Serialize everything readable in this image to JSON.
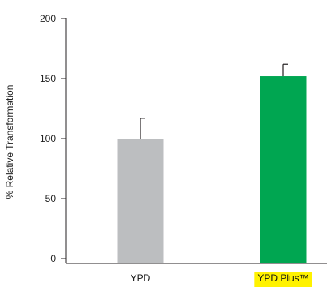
{
  "chart_data": {
    "type": "bar",
    "categories": [
      "YPD",
      "YPD Plus™"
    ],
    "values": [
      100,
      152
    ],
    "errors": [
      17,
      10
    ],
    "ylabel": "% Relative Transformation",
    "xlabel": "",
    "ylim": [
      0,
      200
    ],
    "yticks": [
      0,
      50,
      100,
      150,
      200
    ],
    "grid": false,
    "legend": "none",
    "colors": {
      "bars": [
        "#bcbec0",
        "#00a651"
      ],
      "highlight": "#fff200",
      "axis": "#231f20",
      "error_bar": "#231f20"
    },
    "highlighted_categories": [
      "YPD Plus™"
    ]
  }
}
